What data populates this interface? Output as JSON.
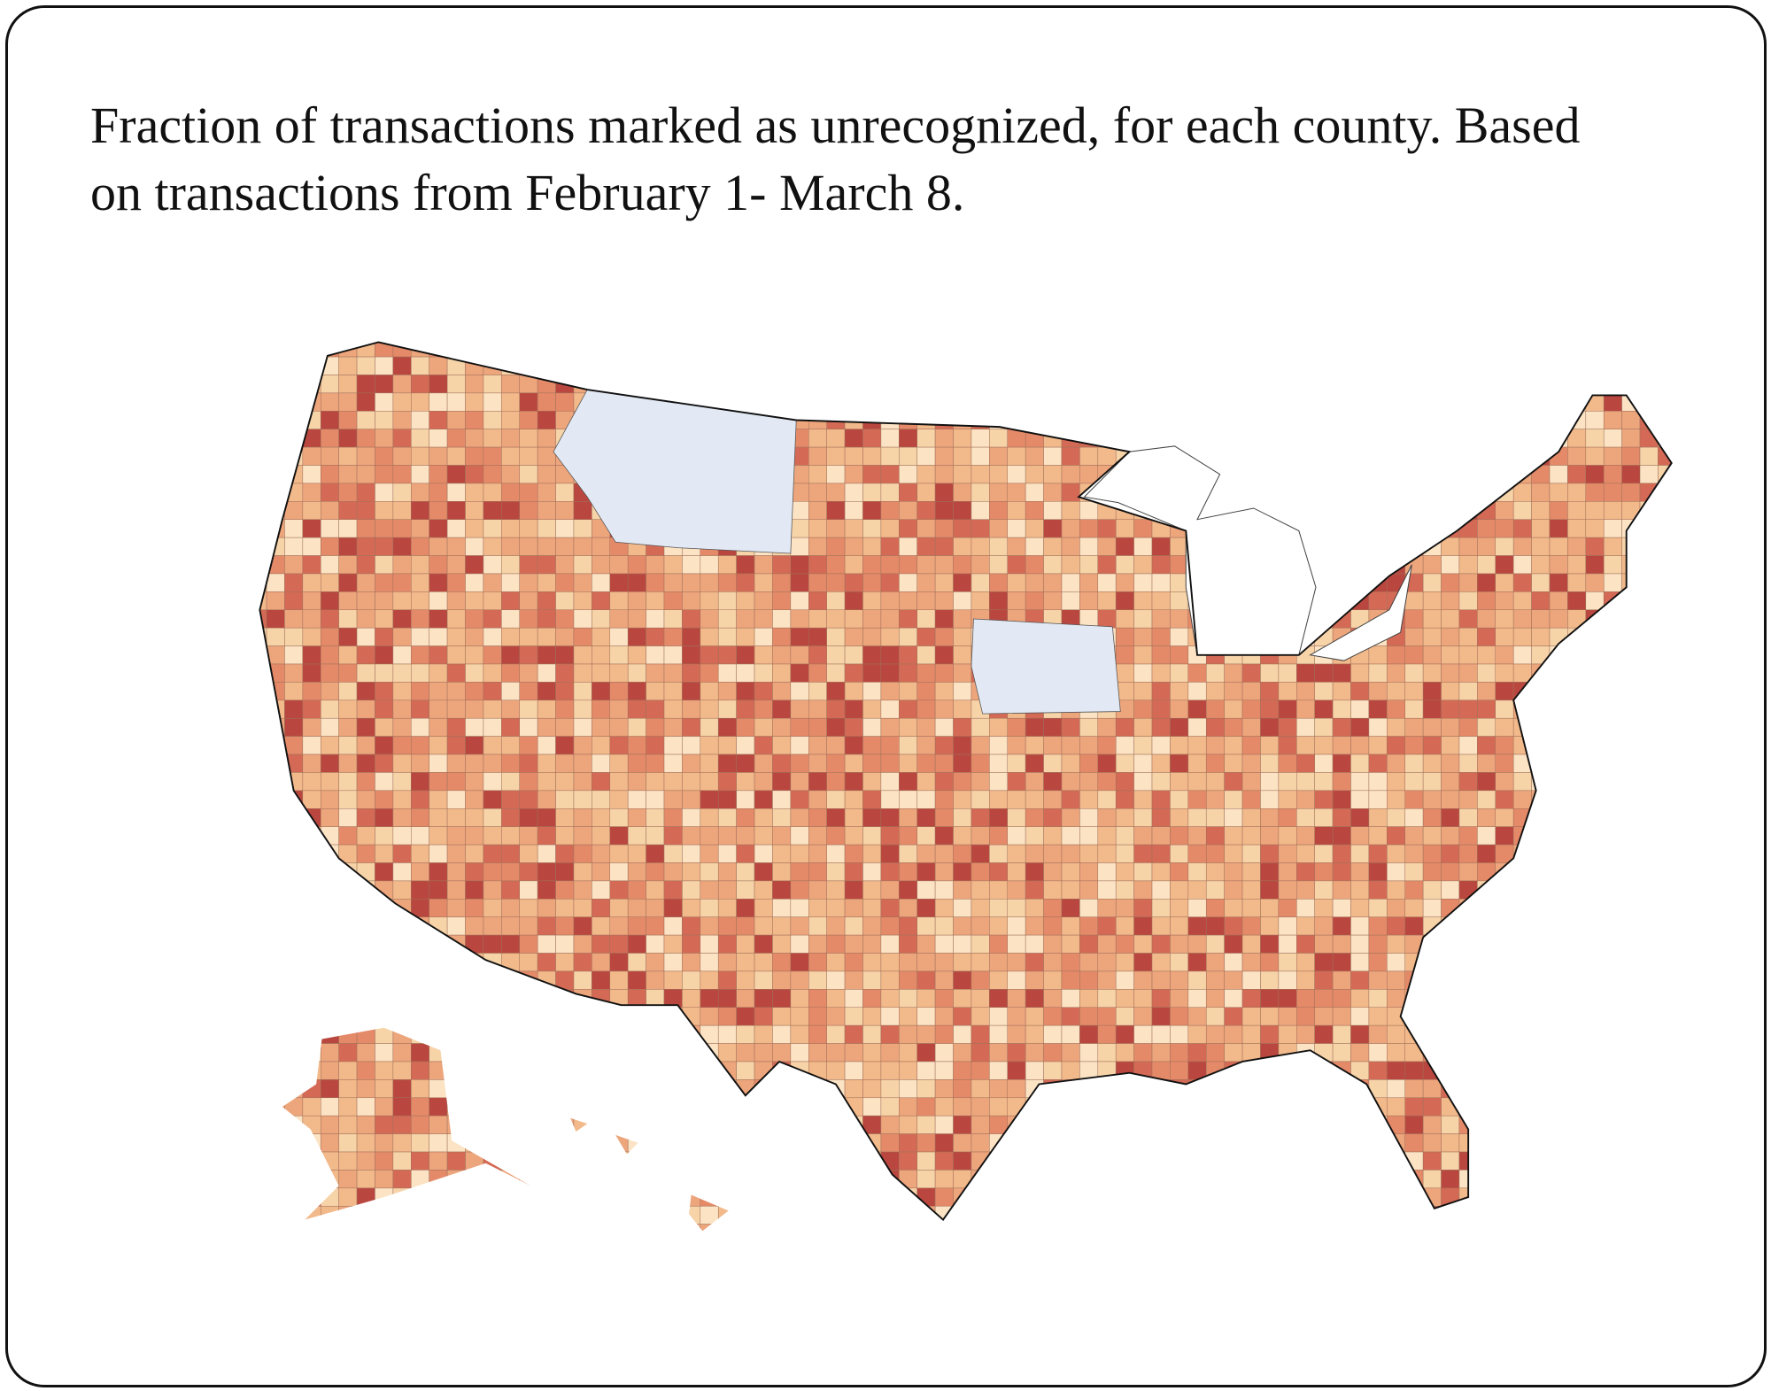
{
  "title": "Fraction of transactions marked as unrecognized, for each county. Based on transactions from February 1- March 8."
}
